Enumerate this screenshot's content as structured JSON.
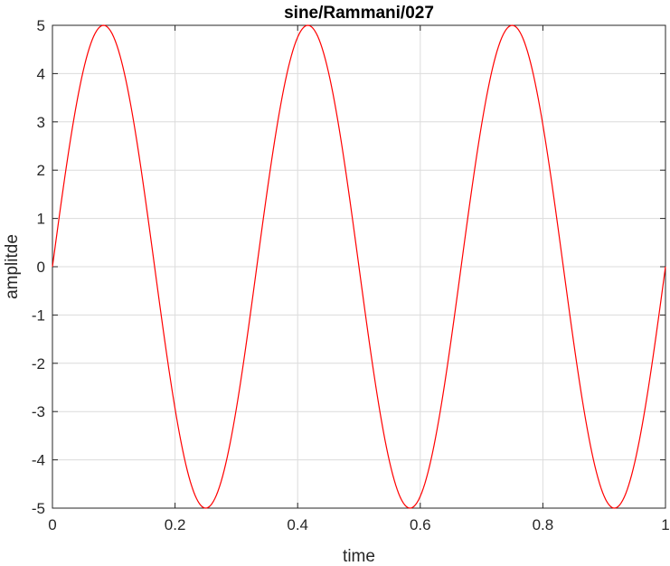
{
  "chart_data": {
    "type": "line",
    "title": "sine/Rammani/027",
    "xlabel": "time",
    "ylabel": "amplitde",
    "xlim": [
      0,
      1
    ],
    "ylim": [
      -5,
      5
    ],
    "xticks": [
      0,
      0.2,
      0.4,
      0.6,
      0.8,
      1
    ],
    "xtick_labels": [
      "0",
      "0.2",
      "0.4",
      "0.6",
      "0.8",
      "1"
    ],
    "yticks": [
      -5,
      -4,
      -3,
      -2,
      -1,
      0,
      1,
      2,
      3,
      4,
      5
    ],
    "ytick_labels": [
      "-5",
      "-4",
      "-3",
      "-2",
      "-1",
      "0",
      "1",
      "2",
      "3",
      "4",
      "5"
    ],
    "grid": true,
    "series": [
      {
        "color": "#ff0000",
        "amplitude": 5,
        "frequency": 3,
        "x": [
          0,
          0.02,
          0.04,
          0.06,
          0.08,
          0.1,
          0.12,
          0.14,
          0.16,
          0.18,
          0.2,
          0.22,
          0.24,
          0.26,
          0.28,
          0.3,
          0.32,
          0.34,
          0.36,
          0.38,
          0.4,
          0.42,
          0.44,
          0.46,
          0.48,
          0.5,
          0.52,
          0.54,
          0.56,
          0.58,
          0.6,
          0.62,
          0.64,
          0.66,
          0.68,
          0.7,
          0.72,
          0.74,
          0.76,
          0.78,
          0.8,
          0.82,
          0.84,
          0.86,
          0.88,
          0.9,
          0.92,
          0.94,
          0.96,
          0.98,
          1
        ],
        "y": [
          0,
          1.84,
          3.42,
          4.52,
          4.98,
          4.76,
          3.88,
          2.47,
          0.74,
          -1.09,
          -2.82,
          -4.06,
          -4.86,
          -4.91,
          -4.33,
          -3.05,
          -1.42,
          0.37,
          2.11,
          3.63,
          4.7,
          4.99,
          4.61,
          3.62,
          2.09,
          0,
          -1.84,
          -3.42,
          -4.52,
          -4.98,
          -4.76,
          -3.88,
          -2.47,
          -0.74,
          1.09,
          2.82,
          4.06,
          4.86,
          4.91,
          4.33,
          3.05,
          1.42,
          -0.37,
          -2.11,
          -3.63,
          -4.7,
          -4.99,
          -4.61,
          -3.62,
          -2.09,
          0
        ]
      }
    ]
  }
}
